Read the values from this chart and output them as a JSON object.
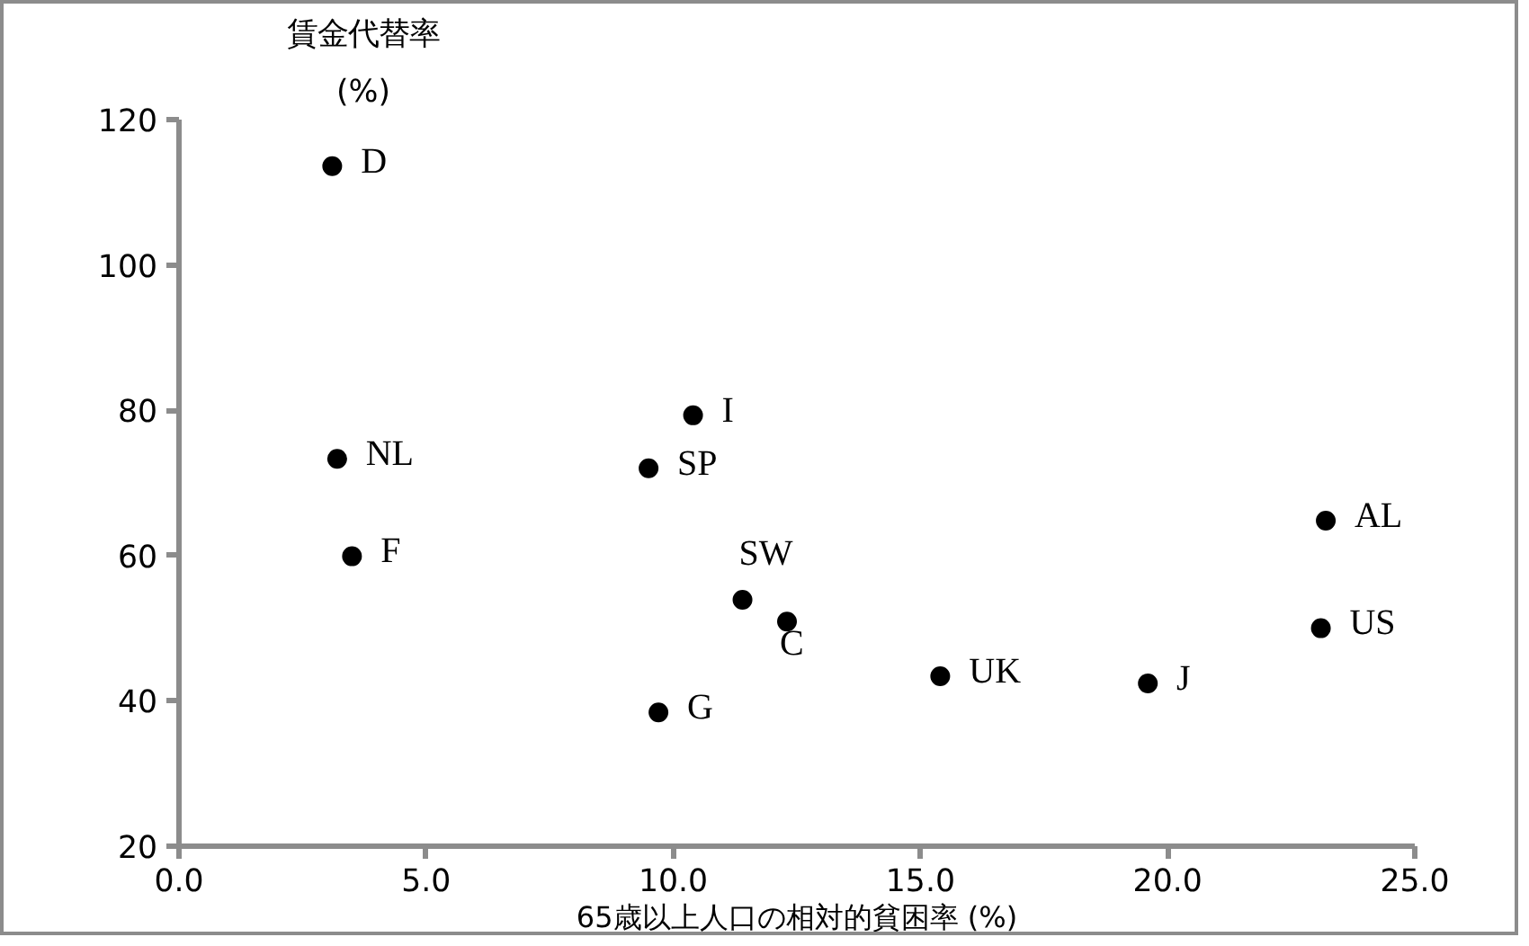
{
  "chart_data": {
    "type": "scatter",
    "xlabel": "65歳以上人口の相対的貧困率 (%)",
    "ylabel": "賃金代替率\n(%)",
    "x": [
      3.1,
      3.2,
      3.5,
      10.4,
      9.5,
      11.4,
      9.7,
      12.3,
      15.4,
      19.6,
      23.2,
      23.1
    ],
    "series": [
      {
        "color": "#000000",
        "values": [
          113.6,
          73.3,
          59.9,
          79.3,
          72.0,
          53.9,
          38.4,
          50.9,
          43.4,
          42.4,
          64.8,
          50.0
        ]
      }
    ],
    "annotations": [
      {
        "text": "D",
        "x": 3.1,
        "y": 113.6
      },
      {
        "text": "NL",
        "x": 3.2,
        "y": 73.3
      },
      {
        "text": "F",
        "x": 3.5,
        "y": 59.9
      },
      {
        "text": "I",
        "x": 10.4,
        "y": 79.3
      },
      {
        "text": "SP",
        "x": 9.5,
        "y": 72.0
      },
      {
        "text": "SW",
        "x": 11.4,
        "y": 53.9
      },
      {
        "text": "G",
        "x": 9.7,
        "y": 38.4
      },
      {
        "text": "C",
        "x": 12.3,
        "y": 50.9
      },
      {
        "text": "UK",
        "x": 15.4,
        "y": 43.4
      },
      {
        "text": "J",
        "x": 19.6,
        "y": 42.4
      },
      {
        "text": "AL",
        "x": 23.2,
        "y": 64.8
      },
      {
        "text": "US",
        "x": 23.1,
        "y": 50.0
      }
    ],
    "xlim": [
      0,
      25
    ],
    "ylim": [
      20,
      120
    ],
    "xticks": [
      {
        "value": 0,
        "label": "0.0"
      },
      {
        "value": 5,
        "label": "5.0"
      },
      {
        "value": 10,
        "label": "10.0"
      },
      {
        "value": 15,
        "label": "15.0"
      },
      {
        "value": 20,
        "label": "20.0"
      },
      {
        "value": 25,
        "label": "25.0"
      }
    ],
    "yticks": [
      20,
      40,
      60,
      80,
      100,
      120
    ],
    "grid": false,
    "marker": "circle"
  }
}
